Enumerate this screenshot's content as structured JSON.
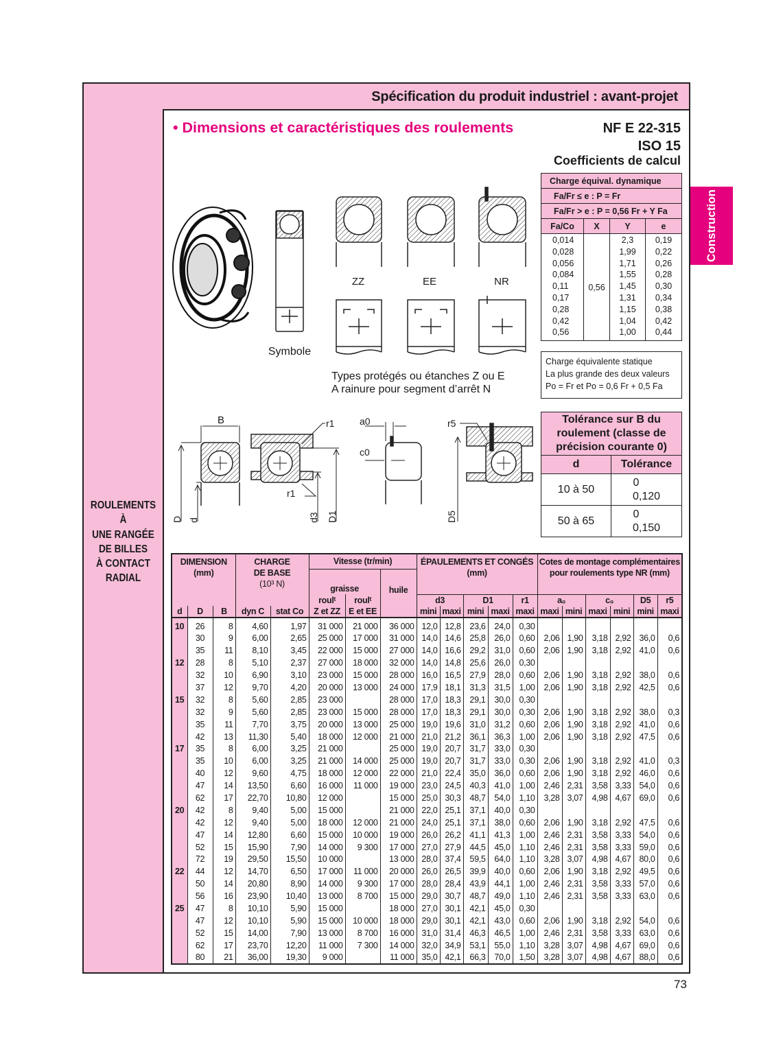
{
  "header": {
    "title": "Spécification du produit industriel : avant-projet"
  },
  "side_tab": {
    "label": "Construction",
    "color": "#e5007d"
  },
  "sidebar": {
    "lines": [
      "ROULEMENTS",
      "À",
      "UNE RANGÉE",
      "DE BILLES",
      "À CONTACT",
      "RADIAL"
    ]
  },
  "section": {
    "title": "• Dimensions et caractéristiques des roulements",
    "standard1": "NF E 22-315",
    "standard2": "ISO 15",
    "coef_title": "Coefficients de calcul"
  },
  "figures": {
    "symbol_label": "Symbole",
    "types": [
      "ZZ",
      "EE",
      "NR"
    ],
    "caption1": "Types protégés ou étanches Z ou E",
    "caption2": "A rainure pour segment d’arrêt N",
    "dims": {
      "B": "B",
      "D": "D",
      "d": "d",
      "r1": "r1",
      "d3": "d3",
      "D1": "D1",
      "a0": "a0",
      "c0": "c0",
      "r5": "r5",
      "D5": "D5"
    }
  },
  "coefficients": {
    "title": "Charge équival. dynamique",
    "rule1": "Fa/Fr ≤ e : P = Fr",
    "rule2": "Fa/Fr > e : P = 0,56 Fr + Y Fa",
    "columns": [
      "Fa/Co",
      "X",
      "Y",
      "e"
    ],
    "fa_co": [
      "0,014",
      "0,028",
      "0,056",
      "0,084",
      "0,11",
      "0,17",
      "0,28",
      "0,42",
      "0,56"
    ],
    "x": "0,56",
    "y": [
      "2,3",
      "1,99",
      "1,71",
      "1,55",
      "1,45",
      "1,31",
      "1,15",
      "1,04",
      "1,00"
    ],
    "e": [
      "0,19",
      "0,22",
      "0,26",
      "0,28",
      "0,30",
      "0,34",
      "0,38",
      "0,42",
      "0,44"
    ]
  },
  "static_load": {
    "line1": "Charge équivalente statique",
    "line2": "La plus grande des deux valeurs",
    "line3": "Po = Fr et Po = 0,6 Fr + 0,5 Fa"
  },
  "tolerance": {
    "title": "Tolérance sur B du roulement (classe de précision courante 0)",
    "col_d": "d",
    "col_tol": "Tolérance",
    "rows": [
      {
        "d": "10 à 50",
        "upper": "0",
        "lower": "0,120"
      },
      {
        "d": "50 à 65",
        "upper": "0",
        "lower": "0,150"
      }
    ]
  },
  "table": {
    "headers": {
      "dimension": "DIMENSION",
      "dimension_unit": "(mm)",
      "charge": "CHARGE",
      "charge2": "DE BASE",
      "charge_unit": "(10³ N)",
      "vitesse": "Vitesse (tr/min)",
      "graisse": "graisse",
      "huile": "huile",
      "roul_z": "roulᵗ",
      "roul_z2": "Z et ZZ",
      "roul_e": "roulᵗ",
      "roul_e2": "E et EE",
      "epaulements": "ÉPAULEMENTS ET CONGÉS",
      "epaulements_unit": "(mm)",
      "cotes": "Cotes de montage complémentaires",
      "cotes2": "pour roulements type NR (mm)",
      "d": "d",
      "D": "D",
      "B": "B",
      "dynC": "dyn C",
      "statCo": "stat Co",
      "d3": "d3",
      "D1": "D1",
      "r1": "r1",
      "a0": "a₀",
      "c0": "c₀",
      "D5": "D5",
      "r5": "r5",
      "mini": "mini",
      "maxi": "maxi"
    },
    "rows": [
      [
        "10",
        "26",
        "8",
        "4,60",
        "1,97",
        "31 000",
        "21 000",
        "36 000",
        "12,0",
        "12,8",
        "23,6",
        "24,0",
        "0,30",
        "",
        "",
        "",
        "",
        "",
        ""
      ],
      [
        "",
        "30",
        "9",
        "6,00",
        "2,65",
        "25 000",
        "17 000",
        "31 000",
        "14,0",
        "14,6",
        "25,8",
        "26,0",
        "0,60",
        "2,06",
        "1,90",
        "3,18",
        "2,92",
        "36,0",
        "0,6"
      ],
      [
        "",
        "35",
        "11",
        "8,10",
        "3,45",
        "22 000",
        "15 000",
        "27 000",
        "14,0",
        "16,6",
        "29,2",
        "31,0",
        "0,60",
        "2,06",
        "1,90",
        "3,18",
        "2,92",
        "41,0",
        "0,6"
      ],
      [
        "12",
        "28",
        "8",
        "5,10",
        "2,37",
        "27 000",
        "18 000",
        "32 000",
        "14,0",
        "14,8",
        "25,6",
        "26,0",
        "0,30",
        "",
        "",
        "",
        "",
        "",
        ""
      ],
      [
        "",
        "32",
        "10",
        "6,90",
        "3,10",
        "23 000",
        "15 000",
        "28 000",
        "16,0",
        "16,5",
        "27,9",
        "28,0",
        "0,60",
        "2,06",
        "1,90",
        "3,18",
        "2,92",
        "38,0",
        "0,6"
      ],
      [
        "",
        "37",
        "12",
        "9,70",
        "4,20",
        "20 000",
        "13 000",
        "24 000",
        "17,9",
        "18,1",
        "31,3",
        "31,5",
        "1,00",
        "2,06",
        "1,90",
        "3,18",
        "2,92",
        "42,5",
        "0,6"
      ],
      [
        "15",
        "32",
        "8",
        "5,60",
        "2,85",
        "23 000",
        "",
        "28 000",
        "17,0",
        "18,3",
        "29,1",
        "30,0",
        "0,30",
        "",
        "",
        "",
        "",
        "",
        ""
      ],
      [
        "",
        "32",
        "9",
        "5,60",
        "2,85",
        "23 000",
        "15 000",
        "28 000",
        "17,0",
        "18,3",
        "29,1",
        "30,0",
        "0,30",
        "2,06",
        "1,90",
        "3,18",
        "2,92",
        "38,0",
        "0,3"
      ],
      [
        "",
        "35",
        "11",
        "7,70",
        "3,75",
        "20 000",
        "13 000",
        "25 000",
        "19,0",
        "19,6",
        "31,0",
        "31,2",
        "0,60",
        "2,06",
        "1,90",
        "3,18",
        "2,92",
        "41,0",
        "0,6"
      ],
      [
        "",
        "42",
        "13",
        "11,30",
        "5,40",
        "18 000",
        "12 000",
        "21 000",
        "21,0",
        "21,2",
        "36,1",
        "36,3",
        "1,00",
        "2,06",
        "1,90",
        "3,18",
        "2,92",
        "47,5",
        "0,6"
      ],
      [
        "17",
        "35",
        "8",
        "6,00",
        "3,25",
        "21 000",
        "",
        "25 000",
        "19,0",
        "20,7",
        "31,7",
        "33,0",
        "0,30",
        "",
        "",
        "",
        "",
        "",
        ""
      ],
      [
        "",
        "35",
        "10",
        "6,00",
        "3,25",
        "21 000",
        "14 000",
        "25 000",
        "19,0",
        "20,7",
        "31,7",
        "33,0",
        "0,30",
        "2,06",
        "1,90",
        "3,18",
        "2,92",
        "41,0",
        "0,3"
      ],
      [
        "",
        "40",
        "12",
        "9,60",
        "4,75",
        "18 000",
        "12 000",
        "22 000",
        "21,0",
        "22,4",
        "35,0",
        "36,0",
        "0,60",
        "2,06",
        "1,90",
        "3,18",
        "2,92",
        "46,0",
        "0,6"
      ],
      [
        "",
        "47",
        "14",
        "13,50",
        "6,60",
        "16 000",
        "11 000",
        "19 000",
        "23,0",
        "24,5",
        "40,3",
        "41,0",
        "1,00",
        "2,46",
        "2,31",
        "3,58",
        "3,33",
        "54,0",
        "0,6"
      ],
      [
        "",
        "62",
        "17",
        "22,70",
        "10,80",
        "12 000",
        "",
        "15 000",
        "25,0",
        "30,3",
        "48,7",
        "54,0",
        "1,10",
        "3,28",
        "3,07",
        "4,98",
        "4,67",
        "69,0",
        "0,6"
      ],
      [
        "20",
        "42",
        "8",
        "9,40",
        "5,00",
        "15 000",
        "",
        "21 000",
        "22,0",
        "25,1",
        "37,1",
        "40,0",
        "0,30",
        "",
        "",
        "",
        "",
        "",
        ""
      ],
      [
        "",
        "42",
        "12",
        "9,40",
        "5,00",
        "18 000",
        "12 000",
        "21 000",
        "24,0",
        "25,1",
        "37,1",
        "38,0",
        "0,60",
        "2,06",
        "1,90",
        "3,18",
        "2,92",
        "47,5",
        "0,6"
      ],
      [
        "",
        "47",
        "14",
        "12,80",
        "6,60",
        "15 000",
        "10 000",
        "19 000",
        "26,0",
        "26,2",
        "41,1",
        "41,3",
        "1,00",
        "2,46",
        "2,31",
        "3,58",
        "3,33",
        "54,0",
        "0,6"
      ],
      [
        "",
        "52",
        "15",
        "15,90",
        "7,90",
        "14 000",
        "9 300",
        "17 000",
        "27,0",
        "27,9",
        "44,5",
        "45,0",
        "1,10",
        "2,46",
        "2,31",
        "3,58",
        "3,33",
        "59,0",
        "0,6"
      ],
      [
        "",
        "72",
        "19",
        "29,50",
        "15,50",
        "10 000",
        "",
        "13 000",
        "28,0",
        "37,4",
        "59,5",
        "64,0",
        "1,10",
        "3,28",
        "3,07",
        "4,98",
        "4,67",
        "80,0",
        "0,6"
      ],
      [
        "22",
        "44",
        "12",
        "14,70",
        "6,50",
        "17 000",
        "11 000",
        "20 000",
        "26,0",
        "26,5",
        "39,9",
        "40,0",
        "0,60",
        "2,06",
        "1,90",
        "3,18",
        "2,92",
        "49,5",
        "0,6"
      ],
      [
        "",
        "50",
        "14",
        "20,80",
        "8,90",
        "14 000",
        "9 300",
        "17 000",
        "28,0",
        "28,4",
        "43,9",
        "44,1",
        "1,00",
        "2,46",
        "2,31",
        "3,58",
        "3,33",
        "57,0",
        "0,6"
      ],
      [
        "",
        "56",
        "16",
        "23,90",
        "10,40",
        "13 000",
        "8 700",
        "15 000",
        "29,0",
        "30,7",
        "48,7",
        "49,0",
        "1,10",
        "2,46",
        "2,31",
        "3,58",
        "3,33",
        "63,0",
        "0,6"
      ],
      [
        "25",
        "47",
        "8",
        "10,10",
        "5,90",
        "15 000",
        "",
        "18 000",
        "27,0",
        "30,1",
        "42,1",
        "45,0",
        "0,30",
        "",
        "",
        "",
        "",
        "",
        ""
      ],
      [
        "",
        "47",
        "12",
        "10,10",
        "5,90",
        "15 000",
        "10 000",
        "18 000",
        "29,0",
        "30,1",
        "42,1",
        "43,0",
        "0,60",
        "2,06",
        "1,90",
        "3,18",
        "2,92",
        "54,0",
        "0,6"
      ],
      [
        "",
        "52",
        "15",
        "14,00",
        "7,90",
        "13 000",
        "8 700",
        "16 000",
        "31,0",
        "31,4",
        "46,3",
        "46,5",
        "1,00",
        "2,46",
        "2,31",
        "3,58",
        "3,33",
        "63,0",
        "0,6"
      ],
      [
        "",
        "62",
        "17",
        "23,70",
        "12,20",
        "11 000",
        "7 300",
        "14 000",
        "32,0",
        "34,9",
        "53,1",
        "55,0",
        "1,10",
        "3,28",
        "3,07",
        "4,98",
        "4,67",
        "69,0",
        "0,6"
      ],
      [
        "",
        "80",
        "21",
        "36,00",
        "19,30",
        "9 000",
        "",
        "11 000",
        "35,0",
        "42,1",
        "66,3",
        "70,0",
        "1,50",
        "3,28",
        "3,07",
        "4,98",
        "4,67",
        "88,0",
        "0,6"
      ]
    ]
  },
  "page_number": "73"
}
